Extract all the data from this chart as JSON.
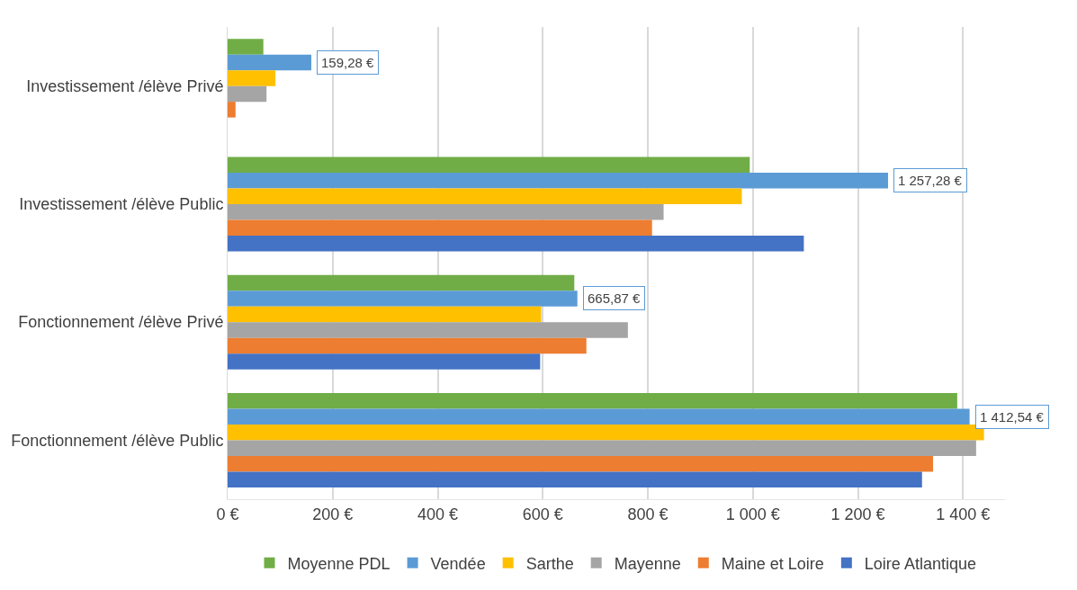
{
  "chart_data": {
    "type": "bar",
    "orientation": "horizontal",
    "categories": [
      "Investissement /élève Privé",
      "Investissement /élève Public",
      "Fonctionnement /élève Privé",
      "Fonctionnement /élève Public"
    ],
    "series": [
      {
        "name": "Moyenne PDL",
        "color": "#70ad47",
        "values": [
          68,
          994,
          660,
          1389
        ]
      },
      {
        "name": "Vendée",
        "color": "#5b9bd5",
        "values": [
          159.28,
          1257.28,
          665.87,
          1412.54
        ],
        "value_labels": [
          "159,28 €",
          "1 257,28 €",
          "665,87 €",
          "1 412,54 €"
        ]
      },
      {
        "name": "Sarthe",
        "color": "#ffc000",
        "values": [
          91,
          979,
          597,
          1440
        ]
      },
      {
        "name": "Mayenne",
        "color": "#a5a5a5",
        "values": [
          74,
          830,
          762,
          1425
        ]
      },
      {
        "name": "Maine et Loire",
        "color": "#ed7d31",
        "values": [
          15,
          808,
          683,
          1343
        ]
      },
      {
        "name": "Loire Atlantique",
        "color": "#4472c4",
        "values": [
          null,
          1097,
          595,
          1322
        ]
      }
    ],
    "xlim": [
      0,
      1480
    ],
    "xticks": [
      {
        "value": 0,
        "label": "0 €"
      },
      {
        "value": 200,
        "label": "200 €"
      },
      {
        "value": 400,
        "label": "400 €"
      },
      {
        "value": 600,
        "label": "600 €"
      },
      {
        "value": 800,
        "label": "800 €"
      },
      {
        "value": 1000,
        "label": "1 000 €"
      },
      {
        "value": 1200,
        "label": "1 200 €"
      },
      {
        "value": 1400,
        "label": "1 400 €"
      }
    ],
    "grid": "x",
    "legend": "bottom"
  }
}
